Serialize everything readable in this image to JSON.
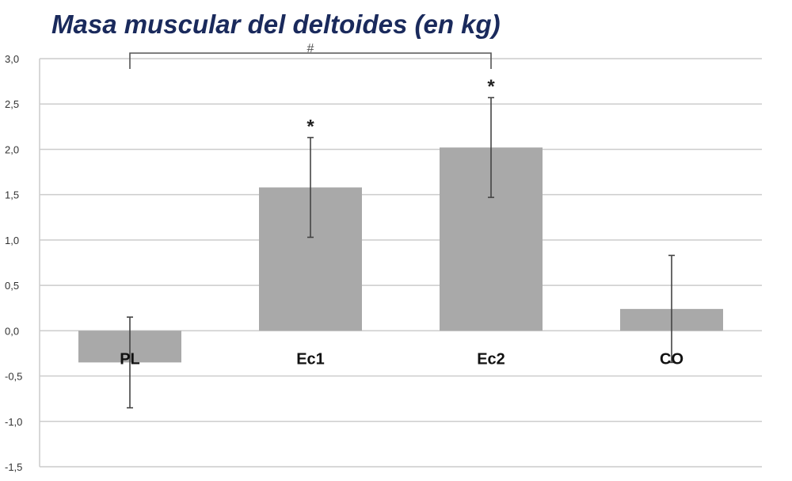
{
  "chart_data": {
    "type": "bar",
    "title": "Masa muscular del deltoides (en kg)",
    "xlabel": "",
    "ylabel": "",
    "categories": [
      "PL",
      "Ec1",
      "Ec2",
      "CO"
    ],
    "values": [
      -0.35,
      1.58,
      2.02,
      0.24
    ],
    "error": [
      0.5,
      0.55,
      0.55,
      0.59
    ],
    "significance": [
      "",
      "*",
      "*",
      ""
    ],
    "bracket": {
      "from": "PL",
      "to": "Ec2",
      "label": "#"
    },
    "ylim": [
      -1.5,
      3.0
    ],
    "yticks": [
      "-1,5",
      "-1,0",
      "-0,5",
      "0,0",
      "0,5",
      "1,0",
      "1,5",
      "2,0",
      "2,5",
      "3,0"
    ],
    "grid": true,
    "legend": "none"
  },
  "colors": {
    "title": "#1a2a5c",
    "bar": "#a9a9a9",
    "grid": "#cccccc",
    "axis_text": "#333333",
    "error": "#444444"
  }
}
